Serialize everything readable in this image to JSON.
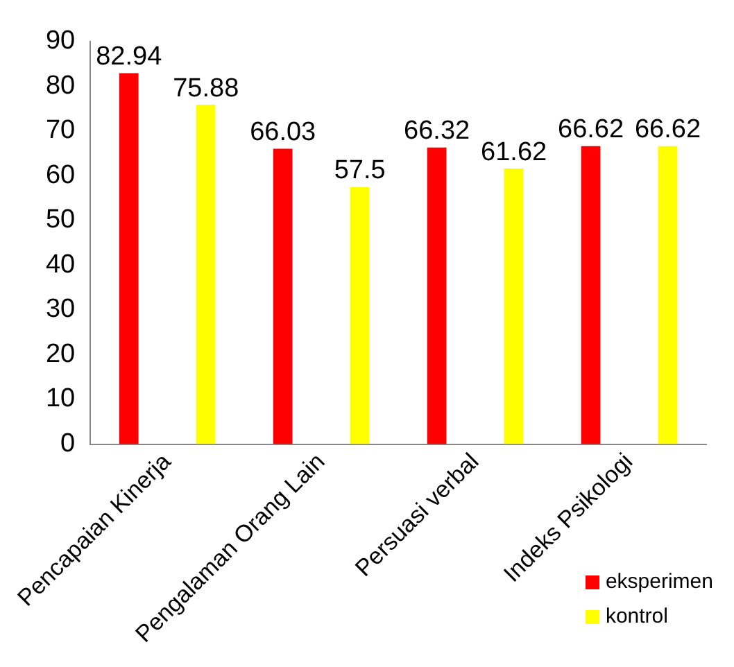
{
  "chart_data": {
    "type": "bar",
    "categories": [
      "Pencapaian Kinerja",
      "Pengalaman Orang Lain",
      "Persuasi verbal",
      "Indeks Psikologi"
    ],
    "series": [
      {
        "name": "eksperimen",
        "color": "#ff0000",
        "values": [
          82.94,
          66.03,
          66.32,
          66.62
        ]
      },
      {
        "name": "kontrol",
        "color": "#ffff00",
        "values": [
          75.88,
          57.5,
          61.62,
          66.62
        ]
      }
    ],
    "ylim": [
      0,
      90
    ],
    "yticks": [
      0,
      10,
      20,
      30,
      40,
      50,
      60,
      70,
      80,
      90
    ],
    "grid": false,
    "legend": "bottom right",
    "data_labels": true
  }
}
